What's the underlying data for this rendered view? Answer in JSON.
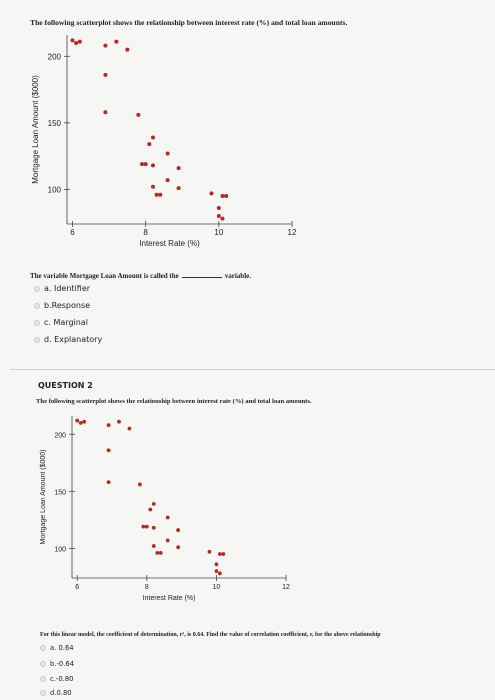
{
  "question1": {
    "prompt": "The following scatterplot shows the relationship between interest rate (%) and total loan amounts.",
    "stem_before": "The variable Mortgage Loan Amount is called the",
    "stem_after": "variable.",
    "options": [
      {
        "label": "a. Identifier"
      },
      {
        "label": "b.Response"
      },
      {
        "label": "c. Marginal"
      },
      {
        "label": "d. Explanatory"
      }
    ]
  },
  "question2": {
    "title": "QUESTION 2",
    "prompt": "The following scatterplot shows the relationship between interest rate (%) and total loan amounts.",
    "stem": "For this linear model, the coefficient of determination, r², is 0.64. Find the value of correlation coefficient, r, for the above relationship",
    "options": [
      {
        "label": "a. 0.64"
      },
      {
        "label": "b.-0.64"
      },
      {
        "label": "c.-0.80"
      },
      {
        "label": "d.0.80"
      }
    ]
  },
  "chart_data": [
    {
      "type": "scatter",
      "xlabel": "Interest Rate (%)",
      "ylabel": "Mortgage Loan Amount ($000)",
      "xticks": [
        "6",
        "8",
        "10",
        "12"
      ],
      "yticks": [
        "100",
        "150",
        "200"
      ],
      "xlim": [
        5.85,
        12
      ],
      "ylim": [
        74,
        216
      ],
      "point_color": "#b42a22",
      "points": [
        {
          "x": 6.0,
          "y": 212
        },
        {
          "x": 6.1,
          "y": 210
        },
        {
          "x": 6.2,
          "y": 211
        },
        {
          "x": 6.9,
          "y": 208
        },
        {
          "x": 7.2,
          "y": 211
        },
        {
          "x": 7.5,
          "y": 205
        },
        {
          "x": 6.9,
          "y": 186
        },
        {
          "x": 6.9,
          "y": 158
        },
        {
          "x": 7.8,
          "y": 156
        },
        {
          "x": 8.2,
          "y": 139
        },
        {
          "x": 8.1,
          "y": 134
        },
        {
          "x": 8.6,
          "y": 127
        },
        {
          "x": 7.9,
          "y": 119
        },
        {
          "x": 8.0,
          "y": 119
        },
        {
          "x": 8.2,
          "y": 118
        },
        {
          "x": 8.9,
          "y": 116
        },
        {
          "x": 8.6,
          "y": 107
        },
        {
          "x": 8.2,
          "y": 102
        },
        {
          "x": 8.9,
          "y": 101
        },
        {
          "x": 8.3,
          "y": 96
        },
        {
          "x": 8.4,
          "y": 96
        },
        {
          "x": 9.8,
          "y": 97
        },
        {
          "x": 10.1,
          "y": 95
        },
        {
          "x": 10.2,
          "y": 95
        },
        {
          "x": 10.0,
          "y": 86
        },
        {
          "x": 10.0,
          "y": 80
        },
        {
          "x": 10.1,
          "y": 78
        }
      ]
    },
    {
      "type": "scatter",
      "xlabel": "Interest Rate (%)",
      "ylabel": "Mortgage Loan Amount ($000)",
      "xticks": [
        "6",
        "8",
        "10",
        "12"
      ],
      "yticks": [
        "100",
        "150",
        "200"
      ],
      "xlim": [
        5.85,
        12
      ],
      "ylim": [
        74,
        216
      ],
      "point_color": "#b42a22",
      "points": [
        {
          "x": 6.0,
          "y": 212
        },
        {
          "x": 6.1,
          "y": 210
        },
        {
          "x": 6.2,
          "y": 211
        },
        {
          "x": 6.9,
          "y": 208
        },
        {
          "x": 7.2,
          "y": 211
        },
        {
          "x": 7.5,
          "y": 205
        },
        {
          "x": 6.9,
          "y": 186
        },
        {
          "x": 6.9,
          "y": 158
        },
        {
          "x": 7.8,
          "y": 156
        },
        {
          "x": 8.2,
          "y": 139
        },
        {
          "x": 8.1,
          "y": 134
        },
        {
          "x": 8.6,
          "y": 127
        },
        {
          "x": 7.9,
          "y": 119
        },
        {
          "x": 8.0,
          "y": 119
        },
        {
          "x": 8.2,
          "y": 118
        },
        {
          "x": 8.9,
          "y": 116
        },
        {
          "x": 8.6,
          "y": 107
        },
        {
          "x": 8.2,
          "y": 102
        },
        {
          "x": 8.9,
          "y": 101
        },
        {
          "x": 8.3,
          "y": 96
        },
        {
          "x": 8.4,
          "y": 96
        },
        {
          "x": 9.8,
          "y": 97
        },
        {
          "x": 10.1,
          "y": 95
        },
        {
          "x": 10.2,
          "y": 95
        },
        {
          "x": 10.0,
          "y": 86
        },
        {
          "x": 10.0,
          "y": 80
        },
        {
          "x": 10.1,
          "y": 78
        }
      ]
    }
  ]
}
